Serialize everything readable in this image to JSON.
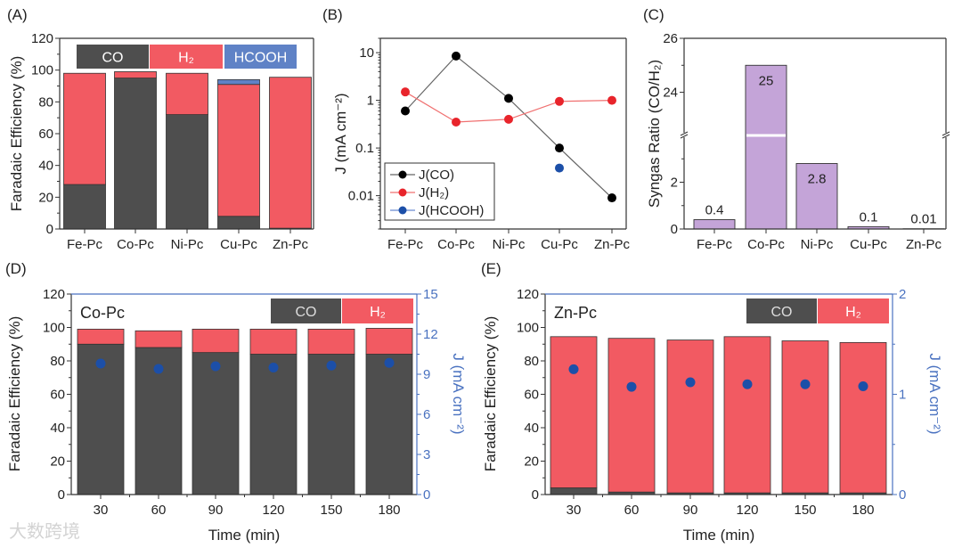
{
  "colors": {
    "co": "#4e4e4e",
    "h2": "#f25a62",
    "hcooh": "#5f82c6",
    "j_dot": "#1c4fa8",
    "syngas": "#c4a4d8",
    "right_axis": "#4a72c0"
  },
  "watermark": "大数跨境",
  "chart_data": [
    {
      "panel": "(A)",
      "type": "bar",
      "stacked": true,
      "categories": [
        "Fe-Pc",
        "Co-Pc",
        "Ni-Pc",
        "Cu-Pc",
        "Zn-Pc"
      ],
      "series": [
        {
          "name": "CO",
          "values": [
            28,
            95,
            72,
            8,
            0.5
          ]
        },
        {
          "name": "H₂",
          "values": [
            70,
            4,
            26,
            83,
            95
          ]
        },
        {
          "name": "HCOOH",
          "values": [
            0,
            0,
            0,
            3,
            0
          ]
        }
      ],
      "ylabel": "Faradaic Efficiency (%)",
      "xlabel": "",
      "ylim": [
        0,
        120
      ],
      "yticks": [
        "0",
        "20",
        "40",
        "60",
        "80",
        "100",
        "120"
      ],
      "legend": [
        "CO",
        "H₂",
        "HCOOH"
      ],
      "legend_placement": "top"
    },
    {
      "panel": "(B)",
      "type": "line",
      "yscale": "log",
      "categories": [
        "Fe-Pc",
        "Co-Pc",
        "Ni-Pc",
        "Cu-Pc",
        "Zn-Pc"
      ],
      "series": [
        {
          "name": "J(CO)",
          "values": [
            0.6,
            8.5,
            1.1,
            0.1,
            0.009
          ]
        },
        {
          "name": "J(H₂)",
          "values": [
            1.5,
            0.35,
            0.4,
            0.95,
            1.0
          ]
        },
        {
          "name": "J(HCOOH)",
          "values": [
            null,
            null,
            null,
            0.038,
            null
          ]
        }
      ],
      "ylabel": "J (mA cm⁻²)",
      "xlabel": "",
      "ylim": [
        0.002,
        20
      ],
      "yticks": [
        "0.01",
        "0.1",
        "1",
        "10"
      ],
      "legend_placement": "bottom-left"
    },
    {
      "panel": "(C)",
      "type": "bar",
      "broken_axis": [
        4,
        22.4
      ],
      "categories": [
        "Fe-Pc",
        "Co-Pc",
        "Ni-Pc",
        "Cu-Pc",
        "Zn-Pc"
      ],
      "values": [
        0.4,
        25,
        2.8,
        0.1,
        0.01
      ],
      "data_labels": [
        "0.4",
        "25",
        "2.8",
        "0.1",
        "0.01"
      ],
      "ylabel": "Syngas Ratio (CO/H₂)",
      "xlabel": "",
      "ylim": [
        0,
        26
      ],
      "yticks": [
        "0",
        "2",
        "24",
        "26"
      ]
    },
    {
      "panel": "(D)",
      "type": "bar",
      "stacked": true,
      "annotation": "Co-Pc",
      "categories": [
        "30",
        "60",
        "90",
        "120",
        "150",
        "180"
      ],
      "series": [
        {
          "name": "CO",
          "values": [
            90,
            88,
            85,
            84,
            84,
            84
          ]
        },
        {
          "name": "H₂",
          "values": [
            9,
            10,
            14,
            15,
            15,
            15.5
          ]
        }
      ],
      "j_series": {
        "name": "J",
        "values": [
          9.8,
          9.4,
          9.6,
          9.5,
          9.65,
          9.85
        ]
      },
      "xlabel": "Time (min)",
      "ylabel": "Faradaic Efficiency (%)",
      "y2label": "J (mA cm⁻²)",
      "ylim": [
        0,
        120
      ],
      "y2lim": [
        0,
        15
      ],
      "yticks": [
        "0",
        "20",
        "40",
        "60",
        "80",
        "100",
        "120"
      ],
      "y2ticks": [
        "0",
        "3",
        "6",
        "9",
        "12",
        "15"
      ],
      "legend": [
        "CO",
        "H₂"
      ],
      "legend_placement": "top-right"
    },
    {
      "panel": "(E)",
      "type": "bar",
      "stacked": true,
      "annotation": "Zn-Pc",
      "categories": [
        "30",
        "60",
        "90",
        "120",
        "150",
        "180"
      ],
      "series": [
        {
          "name": "CO",
          "values": [
            4,
            1.5,
            1,
            1,
            1,
            1
          ]
        },
        {
          "name": "H₂",
          "values": [
            90.5,
            92,
            91.5,
            93.5,
            91,
            90
          ]
        }
      ],
      "j_series": {
        "name": "J",
        "values": [
          1.25,
          1.075,
          1.12,
          1.1,
          1.1,
          1.08
        ]
      },
      "xlabel": "Time (min)",
      "ylabel": "Faradaic Efficiency (%)",
      "y2label": "J (mA cm⁻²)",
      "ylim": [
        0,
        120
      ],
      "y2lim": [
        0,
        2
      ],
      "yticks": [
        "0",
        "20",
        "40",
        "60",
        "80",
        "100",
        "120"
      ],
      "y2ticks": [
        "0",
        "1",
        "2"
      ],
      "legend": [
        "CO",
        "H₂"
      ],
      "legend_placement": "top-right"
    }
  ]
}
